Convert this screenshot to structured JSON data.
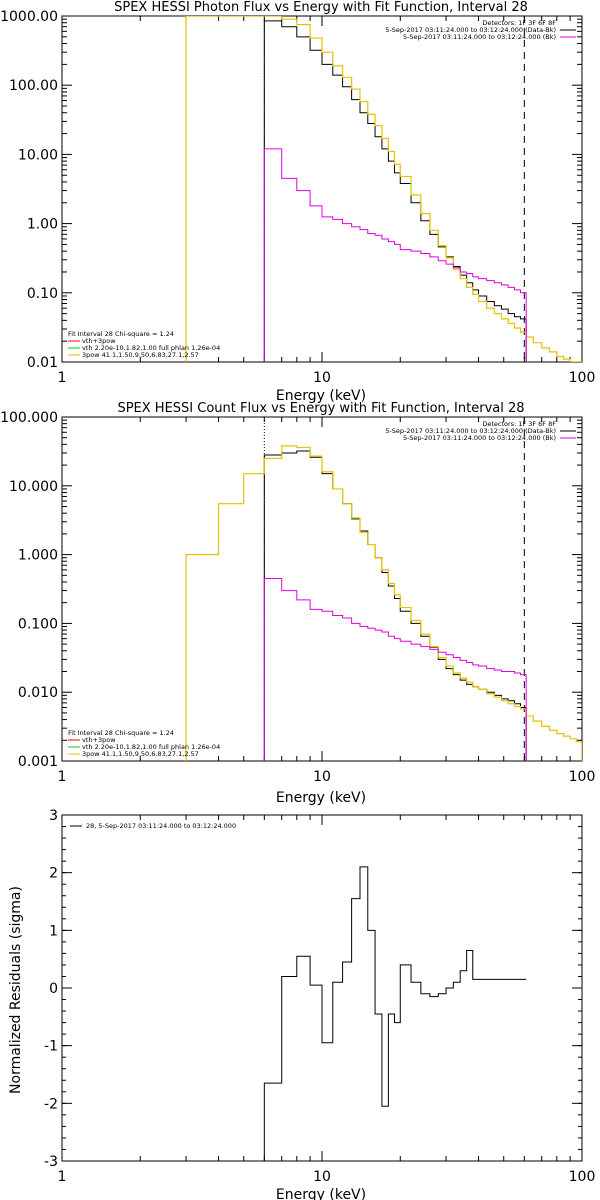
{
  "colors": {
    "background": "#ffffff",
    "axis": "#000000",
    "total": "#000000",
    "vth": "#ff0000",
    "thermal": "#00d000",
    "nonthermal": "#e6c200",
    "background_spectrum": "#e000e0"
  },
  "chart_data": [
    {
      "type": "line",
      "title": "SPEX HESSI Photon Flux vs Energy with Fit Function, Interval 28",
      "xlabel": "Energy (keV)",
      "ylabel": "",
      "xscale": "log",
      "yscale": "log",
      "xlim": [
        1,
        100
      ],
      "ylim": [
        0.01,
        1000
      ],
      "x_ticks": [
        1,
        10,
        100
      ],
      "x_tick_labels": [
        "1",
        "10",
        "100"
      ],
      "y_ticks": [
        0.01,
        0.1,
        1,
        10,
        100,
        1000
      ],
      "y_tick_labels": [
        "0.01",
        "0.10",
        "1.00",
        "10.00",
        "100.00",
        "1000.00"
      ],
      "fit_range_keV": [
        6,
        60
      ],
      "legend_top": {
        "position": "top-right",
        "lines": [
          {
            "text": "Detectors: 1F 3F 6F 8F",
            "color": ""
          },
          {
            "text": "5-Sep-2017 03:11:24.000 to 03:12:24.000 (Data-Bk)",
            "color": "#000000"
          },
          {
            "text": "5-Sep-2017 03:11:24.000 to 03:12:24.000 (Bk)",
            "color": "#e000e0"
          }
        ]
      },
      "legend_bottom": {
        "position": "bottom-left",
        "lines": [
          {
            "text": "Fit Interval 28   Chi-square = 1.24",
            "color": ""
          },
          {
            "text": "vth+3pow",
            "color": "#ff0000"
          },
          {
            "text": "vth 2.20e-10,1.82,1.00   full phlan 1.26e-04",
            "color": "#00d000"
          },
          {
            "text": "3pow 41.1,1.50,9.50,6.83,27.1,2.57",
            "color": "#e6c200"
          }
        ]
      },
      "series": [
        {
          "role": "total",
          "color": "#000000",
          "edges": [
            6,
            7,
            8,
            9,
            10,
            11,
            12,
            13,
            14,
            15,
            16,
            17,
            18,
            19,
            20,
            22,
            24,
            26,
            28,
            30,
            32,
            34,
            36,
            38,
            40,
            43,
            46,
            49,
            52,
            55,
            58,
            61
          ],
          "values": [
            850,
            700,
            500,
            320,
            200,
            140,
            95,
            62,
            40,
            28,
            18,
            12,
            8,
            5.4,
            3.8,
            2.0,
            1.1,
            0.7,
            0.46,
            0.33,
            0.24,
            0.18,
            0.14,
            0.11,
            0.09,
            0.075,
            0.065,
            0.058,
            0.05,
            0.045,
            0.042
          ]
        },
        {
          "role": "model",
          "color": "#e6c200",
          "edges": [
            3,
            4,
            5,
            6,
            7,
            8,
            9,
            10,
            11,
            12,
            13,
            14,
            15,
            16,
            17,
            18,
            19,
            20,
            22,
            24,
            26,
            28,
            30,
            32,
            34,
            36,
            38,
            40,
            43,
            46,
            49,
            52,
            55,
            58,
            61,
            65,
            70,
            75,
            80,
            85,
            90,
            95,
            100
          ],
          "values": [
            1000,
            1000,
            1000,
            1000,
            900,
            750,
            480,
            300,
            190,
            130,
            88,
            58,
            38,
            26,
            17,
            11,
            7.2,
            4.8,
            2.6,
            1.4,
            0.8,
            0.48,
            0.32,
            0.22,
            0.16,
            0.12,
            0.095,
            0.075,
            0.06,
            0.05,
            0.042,
            0.036,
            0.031,
            0.027,
            0.023,
            0.019,
            0.016,
            0.014,
            0.012,
            0.011,
            0.01,
            0.01
          ]
        },
        {
          "role": "background",
          "color": "#e000e0",
          "edges": [
            6,
            7,
            8,
            9,
            10,
            11,
            12,
            13,
            14,
            15,
            16,
            17,
            18,
            19,
            20,
            22,
            24,
            26,
            28,
            30,
            32,
            34,
            36,
            38,
            40,
            43,
            46,
            49,
            52,
            55,
            58,
            61
          ],
          "values": [
            12,
            4.5,
            3.0,
            1.8,
            1.25,
            1.15,
            1.0,
            0.9,
            0.82,
            0.72,
            0.68,
            0.6,
            0.55,
            0.5,
            0.42,
            0.4,
            0.37,
            0.33,
            0.29,
            0.26,
            0.23,
            0.2,
            0.19,
            0.17,
            0.16,
            0.15,
            0.14,
            0.13,
            0.12,
            0.11,
            0.1
          ]
        }
      ]
    },
    {
      "type": "line",
      "title": "SPEX HESSI Count Flux vs Energy with Fit Function, Interval 28",
      "xlabel": "Energy (keV)",
      "ylabel": "",
      "xscale": "log",
      "yscale": "log",
      "xlim": [
        1,
        100
      ],
      "ylim": [
        0.001,
        100
      ],
      "x_ticks": [
        1,
        10,
        100
      ],
      "x_tick_labels": [
        "1",
        "10",
        "100"
      ],
      "y_ticks": [
        0.001,
        0.01,
        0.1,
        1,
        10,
        100
      ],
      "y_tick_labels": [
        "0.001",
        "0.010",
        "0.100",
        "1.000",
        "10.000",
        "100.000"
      ],
      "fit_range_keV": [
        6,
        60
      ],
      "legend_top": {
        "position": "top-right",
        "lines": [
          {
            "text": "Detectors: 1F 3F 6F 8F",
            "color": ""
          },
          {
            "text": "5-Sep-2017 03:11:24.000 to 03:12:24.000 (Data-Bk)",
            "color": "#000000"
          },
          {
            "text": "5-Sep-2017 03:11:24.000 to 03:12:24.000 (Bk)",
            "color": "#e000e0"
          }
        ]
      },
      "legend_bottom": {
        "position": "bottom-left",
        "lines": [
          {
            "text": "Fit Interval 28   Chi-square = 1.24",
            "color": ""
          },
          {
            "text": "vth+3pow",
            "color": "#ff0000"
          },
          {
            "text": "vth 2.20e-10,1.82,1.00   full phlan 1.26e-04",
            "color": "#00d000"
          },
          {
            "text": "3pow 41.1,1.50,9.50,6.83,27.1,2.57",
            "color": "#e6c200"
          }
        ]
      },
      "series": [
        {
          "role": "total",
          "color": "#000000",
          "edges": [
            6,
            7,
            8,
            9,
            10,
            11,
            12,
            13,
            14,
            15,
            16,
            17,
            18,
            19,
            20,
            22,
            24,
            26,
            28,
            30,
            32,
            34,
            36,
            38,
            40,
            43,
            46,
            49,
            52,
            55,
            58,
            61
          ],
          "values": [
            28,
            30,
            32,
            26,
            15,
            9,
            5.5,
            3.3,
            2.2,
            1.4,
            0.9,
            0.55,
            0.35,
            0.23,
            0.15,
            0.1,
            0.065,
            0.045,
            0.03,
            0.022,
            0.018,
            0.015,
            0.013,
            0.012,
            0.011,
            0.01,
            0.009,
            0.008,
            0.0075,
            0.0068,
            0.006
          ]
        },
        {
          "role": "model",
          "color": "#e6c200",
          "edges": [
            3,
            4,
            5,
            6,
            7,
            8,
            9,
            10,
            11,
            12,
            13,
            14,
            15,
            16,
            17,
            18,
            19,
            20,
            22,
            24,
            26,
            28,
            30,
            32,
            34,
            36,
            38,
            40,
            43,
            46,
            49,
            52,
            55,
            58,
            61,
            65,
            70,
            75,
            80,
            85,
            90,
            95,
            100
          ],
          "values": [
            1.0,
            5.5,
            15,
            25,
            38,
            36,
            27,
            16,
            9,
            5.5,
            3.4,
            2.1,
            1.4,
            0.9,
            0.6,
            0.38,
            0.26,
            0.17,
            0.11,
            0.07,
            0.046,
            0.032,
            0.024,
            0.019,
            0.016,
            0.014,
            0.012,
            0.011,
            0.0095,
            0.0085,
            0.0075,
            0.0068,
            0.0062,
            0.0057,
            0.0045,
            0.0038,
            0.0032,
            0.0028,
            0.0025,
            0.0023,
            0.0021,
            0.0019
          ]
        },
        {
          "role": "background",
          "color": "#e000e0",
          "edges": [
            6,
            7,
            8,
            9,
            10,
            11,
            12,
            13,
            14,
            15,
            16,
            17,
            18,
            19,
            20,
            22,
            24,
            26,
            28,
            30,
            32,
            34,
            36,
            38,
            40,
            43,
            46,
            49,
            52,
            55,
            58,
            61
          ],
          "values": [
            0.45,
            0.3,
            0.22,
            0.16,
            0.15,
            0.13,
            0.12,
            0.1,
            0.09,
            0.085,
            0.08,
            0.075,
            0.065,
            0.06,
            0.055,
            0.05,
            0.046,
            0.042,
            0.038,
            0.035,
            0.032,
            0.029,
            0.027,
            0.025,
            0.024,
            0.022,
            0.021,
            0.02,
            0.02,
            0.019,
            0.018
          ]
        }
      ]
    },
    {
      "type": "line",
      "title": "",
      "xlabel": "Energy (keV)",
      "ylabel": "Normalized Residuals (sigma)",
      "xscale": "log",
      "yscale": "linear",
      "xlim": [
        1,
        100
      ],
      "ylim": [
        -3,
        3
      ],
      "x_ticks": [
        1,
        10,
        100
      ],
      "x_tick_labels": [
        "1",
        "10",
        "100"
      ],
      "y_ticks": [
        -3,
        -2,
        -1,
        0,
        1,
        2,
        3
      ],
      "y_tick_labels": [
        "-3",
        "-2",
        "-1",
        "0",
        "1",
        "2",
        "3"
      ],
      "legend_top": {
        "position": "top-left",
        "lines": [
          {
            "text": "28,  5-Sep-2017 03:11:24.000 to 03:12:24.000",
            "color": "#000000"
          }
        ]
      },
      "series": [
        {
          "role": "residuals",
          "color": "#000000",
          "edges": [
            6,
            7,
            8,
            9,
            10,
            11,
            12,
            13,
            14,
            15,
            16,
            17,
            18,
            19,
            20,
            22,
            24,
            26,
            28,
            30,
            32,
            34,
            36,
            38,
            40,
            43,
            46,
            49,
            52,
            55,
            58,
            61
          ],
          "values": [
            -1.65,
            0.2,
            0.55,
            0.05,
            -0.95,
            0.1,
            0.45,
            1.55,
            2.1,
            1.0,
            -0.45,
            -2.05,
            -0.45,
            -0.6,
            0.4,
            0.1,
            -0.1,
            -0.15,
            -0.1,
            0,
            0.1,
            0.3,
            0.65,
            0.15,
            0.15,
            0.15,
            0.15,
            0.15,
            0.15,
            0.15,
            0.15
          ],
          "lower_limit_edge_keV": 6
        }
      ]
    }
  ]
}
